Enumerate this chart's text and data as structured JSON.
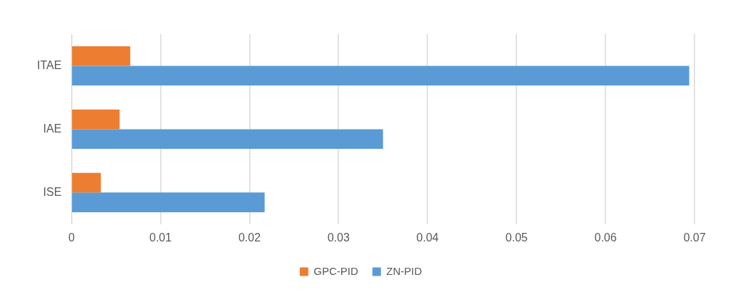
{
  "chart_data": {
    "type": "bar",
    "orientation": "horizontal",
    "categories": [
      "ITAE",
      "IAE",
      "ISE"
    ],
    "series": [
      {
        "name": "GPC-PID",
        "color": "#ed7d31",
        "values": [
          0.0066,
          0.0054,
          0.0033
        ]
      },
      {
        "name": "ZN-PID",
        "color": "#5b9bd5",
        "values": [
          0.0694,
          0.035,
          0.0217
        ]
      }
    ],
    "xlim": [
      0,
      0.07
    ],
    "xticks": [
      0,
      0.01,
      0.02,
      0.03,
      0.04,
      0.05,
      0.06,
      0.07
    ],
    "grid": "x",
    "legend": "bottom"
  }
}
